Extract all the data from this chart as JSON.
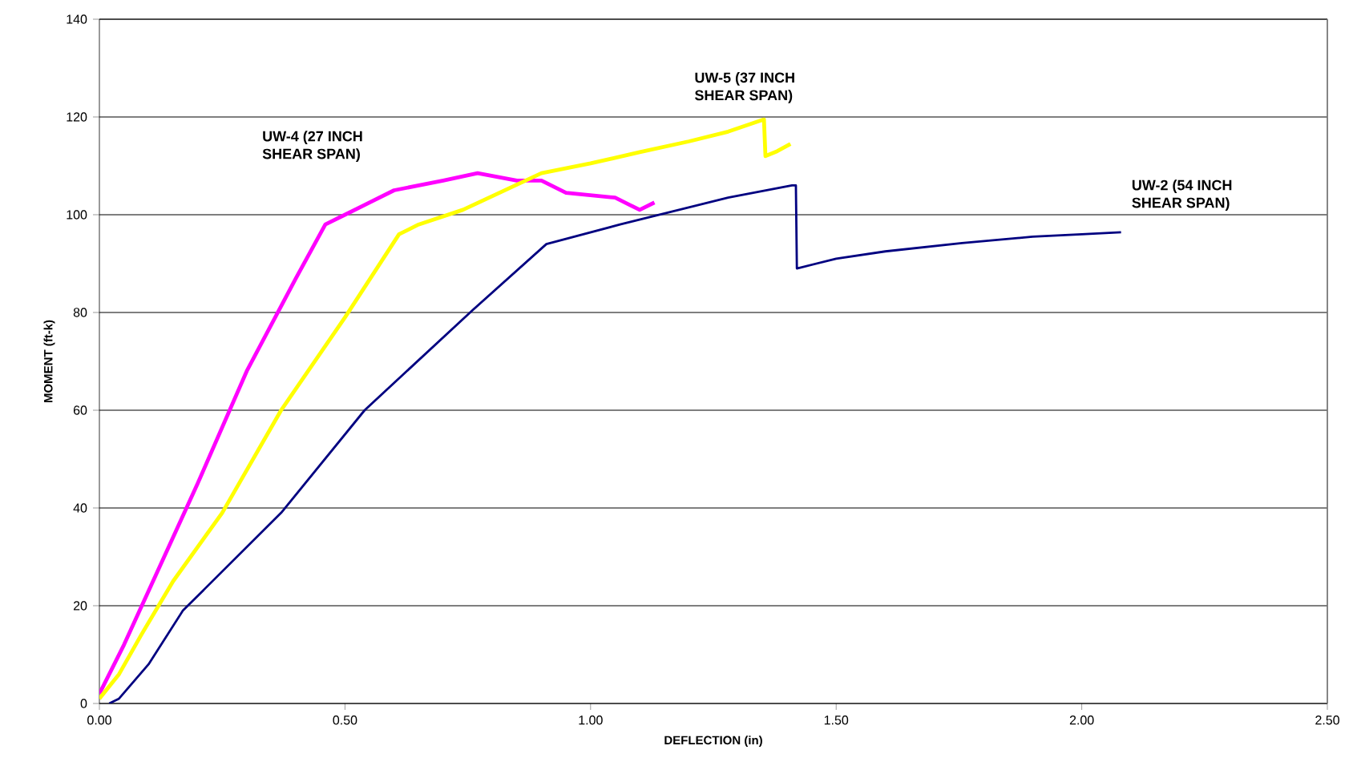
{
  "chart_data": {
    "type": "line",
    "xlabel": "DEFLECTION (in)",
    "ylabel": "MOMENT (ft-k)",
    "xlim": [
      0,
      2.5
    ],
    "ylim": [
      0,
      140
    ],
    "xticks": [
      {
        "value": 0,
        "label": "0.00"
      },
      {
        "value": 0.5,
        "label": "0.50"
      },
      {
        "value": 1,
        "label": "1.00"
      },
      {
        "value": 1.5,
        "label": "1.50"
      },
      {
        "value": 2,
        "label": "2.00"
      },
      {
        "value": 2.5,
        "label": "2.50"
      }
    ],
    "yticks": [
      0,
      20,
      40,
      60,
      80,
      100,
      120,
      140
    ],
    "grid": "y",
    "legend": false,
    "marker": "none",
    "line_style": "solid",
    "series": [
      {
        "name": "UW-4 (27 INCH SHEAR SPAN)",
        "color": "#ff00ff",
        "x": [
          0,
          0.05,
          0.1,
          0.2,
          0.3,
          0.4,
          0.46,
          0.5,
          0.6,
          0.7,
          0.77,
          0.85,
          0.9,
          0.95,
          1.0,
          1.05,
          1.08,
          1.1,
          1.13
        ],
        "values": [
          2,
          12,
          23,
          45,
          68,
          87,
          98,
          100,
          105,
          107,
          108.5,
          107,
          107,
          104.5,
          104,
          103.5,
          102,
          101,
          102.5
        ]
      },
      {
        "name": "UW-5 (37 INCH SHEAR SPAN)",
        "color": "#ffff00",
        "x": [
          0,
          0.04,
          0.085,
          0.15,
          0.25,
          0.37,
          0.5,
          0.61,
          0.65,
          0.74,
          0.9,
          1.0,
          1.1,
          1.2,
          1.28,
          1.353,
          1.356,
          1.38,
          1.407
        ],
        "values": [
          1,
          6,
          14,
          25,
          39,
          60,
          79,
          96,
          98,
          101,
          108.5,
          110.5,
          112.8,
          115,
          117,
          119.5,
          112,
          113,
          114.5
        ]
      },
      {
        "name": "UW-2 (54 INCH SHEAR SPAN)",
        "color": "#000080",
        "x": [
          0.02,
          0.04,
          0.1,
          0.17,
          0.37,
          0.54,
          0.76,
          0.91,
          1.06,
          1.28,
          1.41,
          1.418,
          1.42,
          1.5,
          1.6,
          1.756,
          1.9,
          2.0,
          2.08
        ],
        "values": [
          0,
          1,
          8,
          19,
          39,
          60,
          80.5,
          94,
          98,
          103.5,
          106,
          106,
          89,
          91,
          92.5,
          94.2,
          95.5,
          96,
          96.4
        ]
      }
    ]
  }
}
